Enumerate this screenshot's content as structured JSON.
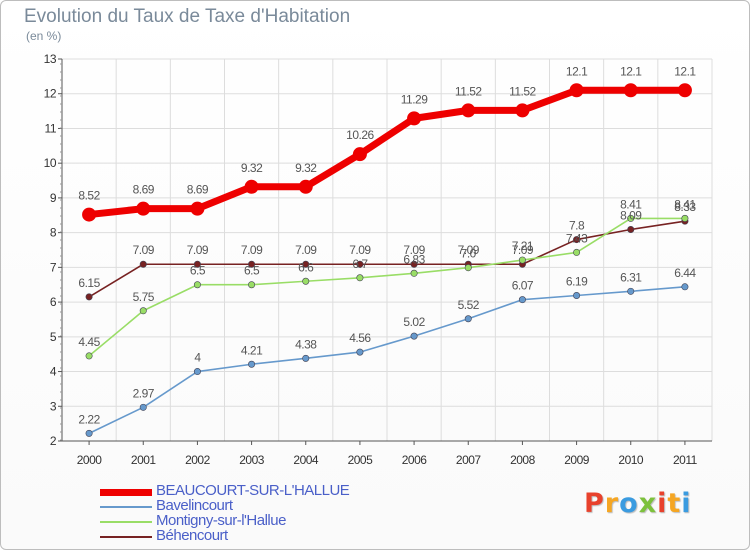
{
  "title": "Evolution du Taux de Taxe d'Habitation",
  "unit_label": "(en %)",
  "logo": {
    "letters": [
      "P",
      "r",
      "o",
      "x",
      "i",
      "t",
      "i"
    ],
    "colors": [
      "#e8412c",
      "#f5a623",
      "#3a9be0",
      "#7dc13c",
      "#e8412c",
      "#f5a623",
      "#3a9be0"
    ]
  },
  "chart_data": {
    "type": "line",
    "title": "Evolution du Taux de Taxe d'Habitation",
    "ylabel": "(en %)",
    "xlabel": "",
    "x": [
      "2000",
      "2001",
      "2002",
      "2003",
      "2004",
      "2005",
      "2006",
      "2007",
      "2008",
      "2009",
      "2010",
      "2011"
    ],
    "ylim": [
      2,
      13
    ],
    "yticks": [
      "2",
      "3",
      "4",
      "5",
      "6",
      "7",
      "8",
      "9",
      "10",
      "11",
      "12",
      "13"
    ],
    "grid": true,
    "legend_position": "bottom-left",
    "series": [
      {
        "name": "BEAUCOURT-SUR-L'HALLUE",
        "color": "#ee0000",
        "values": [
          8.52,
          8.69,
          8.69,
          9.32,
          9.32,
          10.26,
          11.29,
          11.52,
          11.52,
          12.1,
          12.1,
          12.1
        ],
        "labels": [
          "8.52",
          "8.69",
          "8.69",
          "9.32",
          "9.32",
          "10.26",
          "11.29",
          "11.52",
          "11.52",
          "12.1",
          "12.1",
          "12.1"
        ]
      },
      {
        "name": "Bavelincourt",
        "color": "#6699cc",
        "values": [
          2.22,
          2.97,
          4,
          4.21,
          4.38,
          4.56,
          5.02,
          5.52,
          6.07,
          6.19,
          6.31,
          6.44
        ],
        "labels": [
          "2.22",
          "2.97",
          "4",
          "4.21",
          "4.38",
          "4.56",
          "5.02",
          "5.52",
          "6.07",
          "6.19",
          "6.31",
          "6.44"
        ]
      },
      {
        "name": "Montigny-sur-l'Hallue",
        "color": "#99dd66",
        "values": [
          4.45,
          5.75,
          6.5,
          6.5,
          6.6,
          6.7,
          6.83,
          6.99,
          7.21,
          7.43,
          8.41,
          8.41
        ],
        "labels": [
          "4.45",
          "5.75",
          "6.5",
          "6.5",
          "6.6",
          "6.7",
          "6.83",
          "7.0",
          "7.21",
          "7.43",
          "8.41",
          "8.41"
        ]
      },
      {
        "name": "Béhencourt",
        "color": "#772222",
        "values": [
          6.15,
          7.09,
          7.09,
          7.09,
          7.09,
          7.09,
          7.09,
          7.09,
          7.09,
          7.8,
          8.09,
          8.33
        ],
        "labels": [
          "6.15",
          "7.09",
          "7.09",
          "7.09",
          "7.09",
          "7.09",
          "7.09",
          "7.09",
          "7.09",
          "7.8",
          "8.09",
          "8.33"
        ]
      }
    ]
  }
}
